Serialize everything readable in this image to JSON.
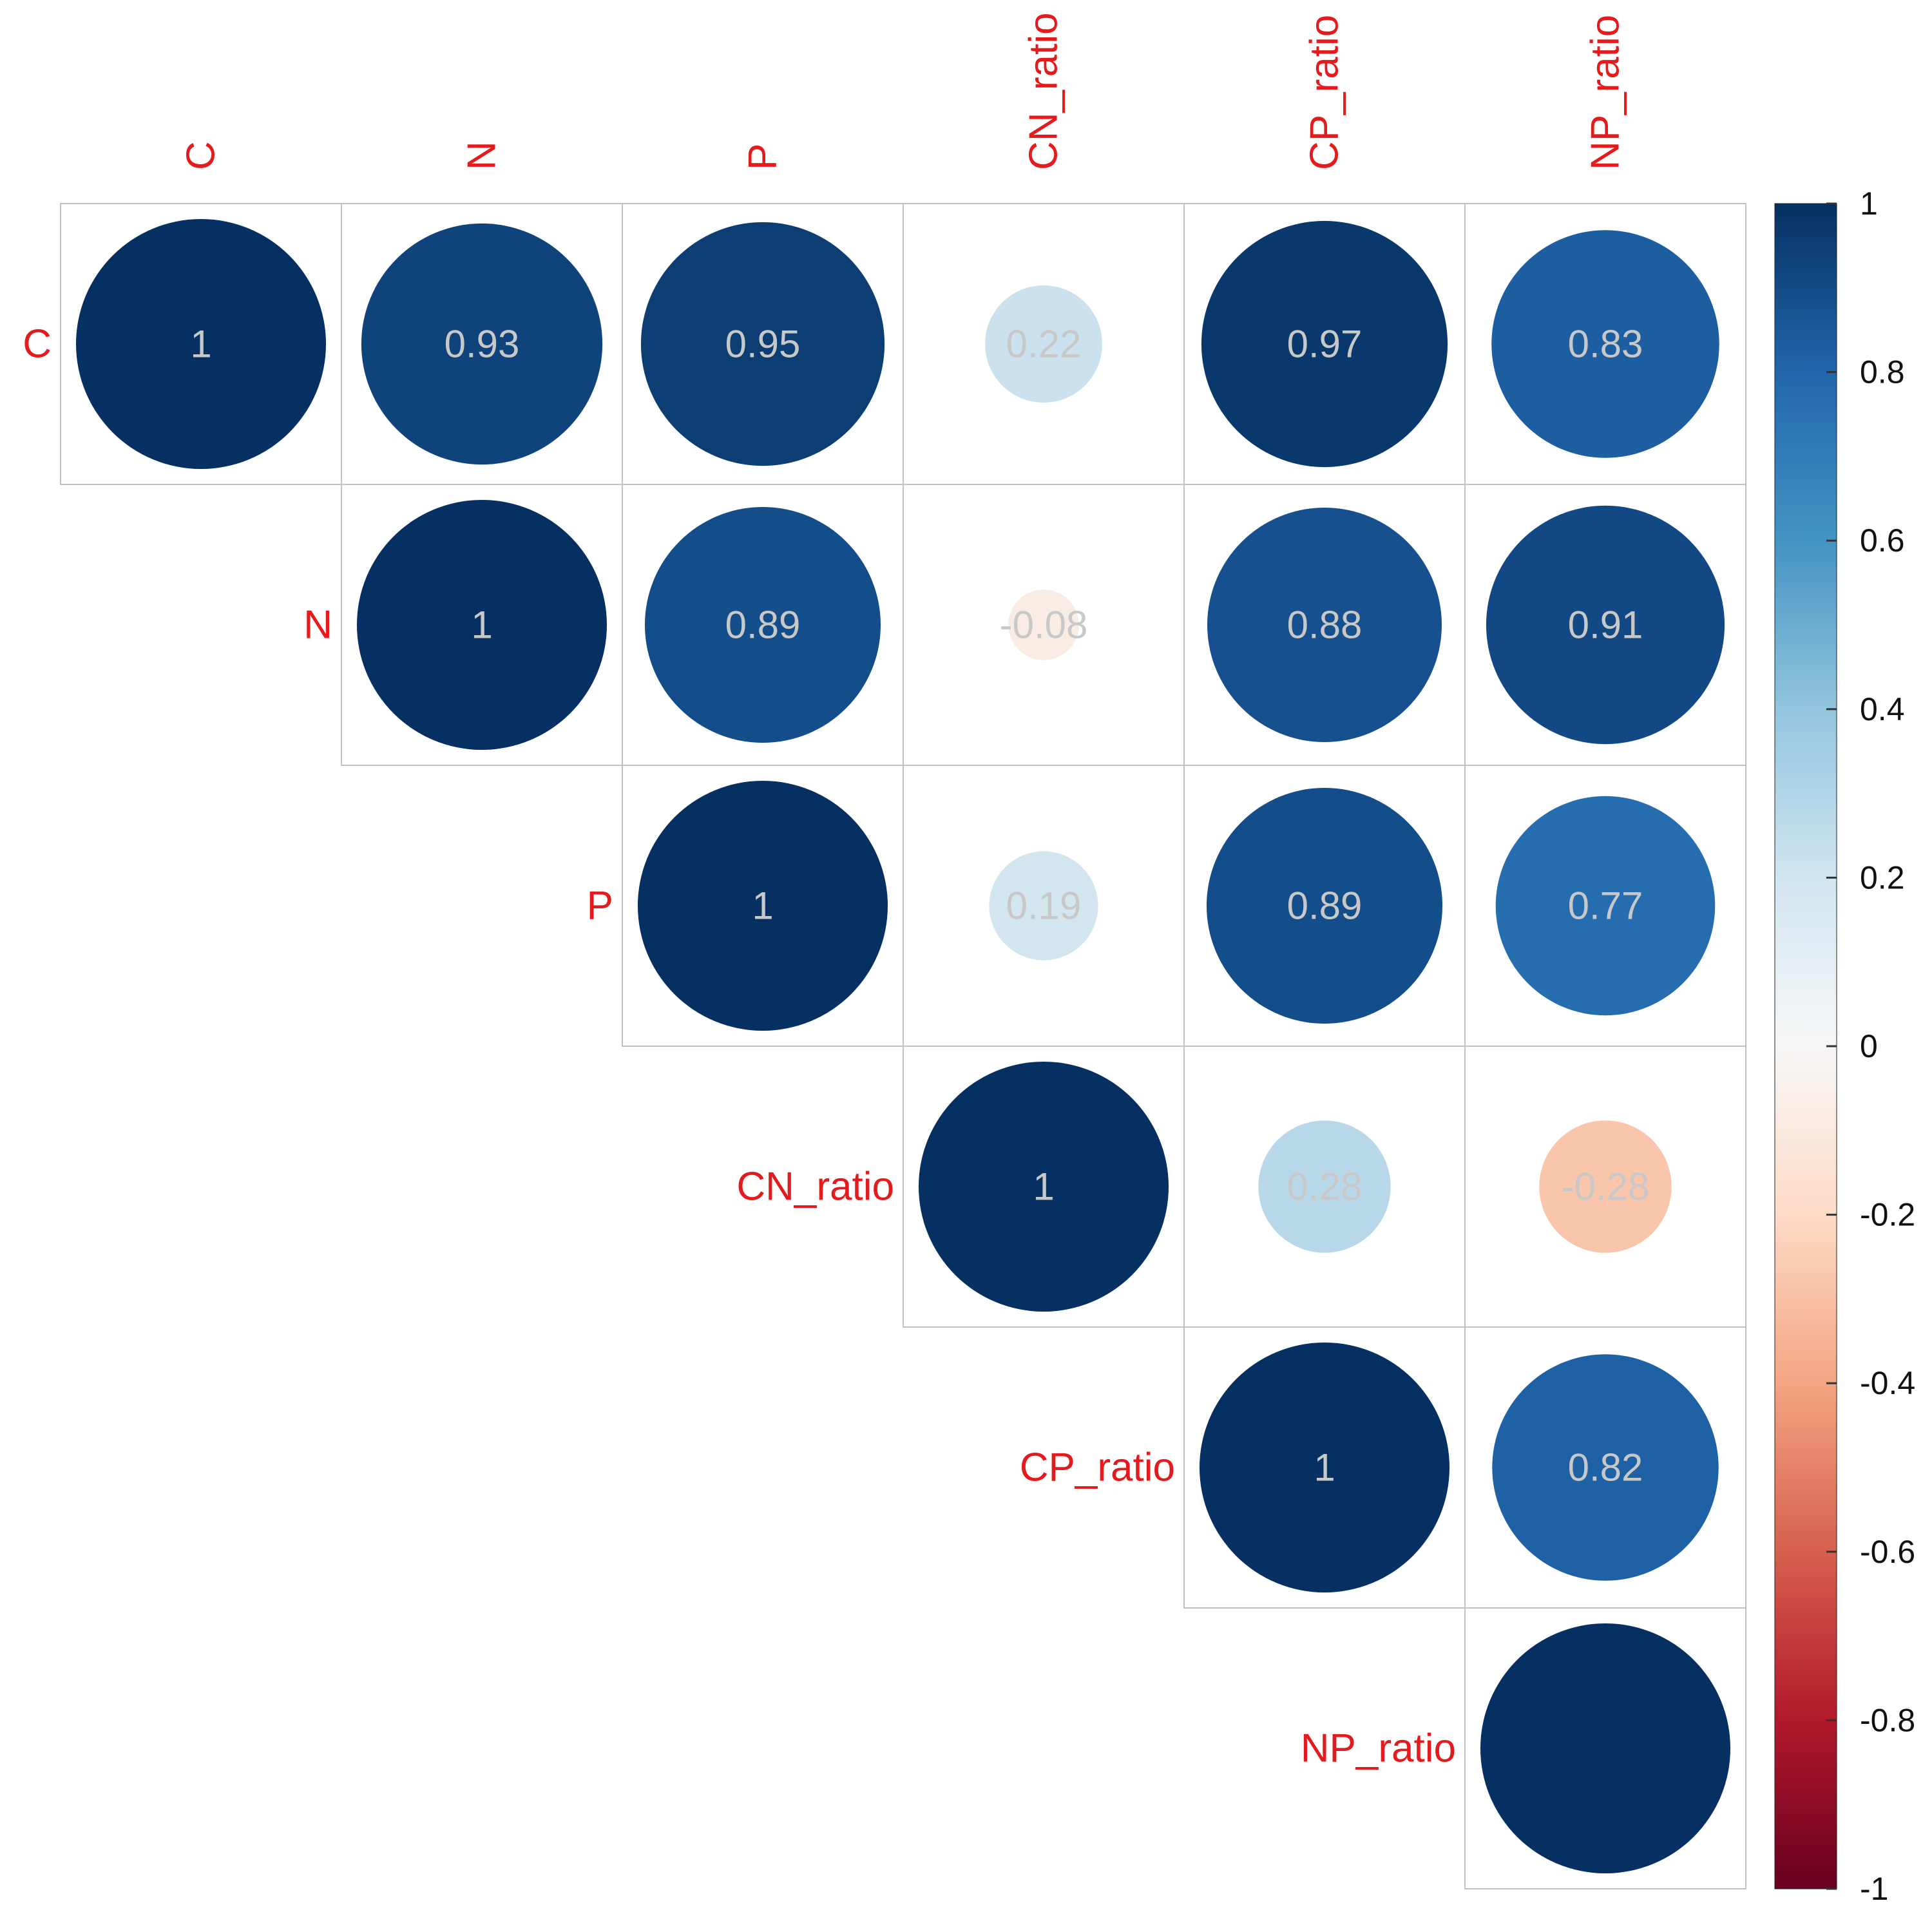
{
  "chart_data": {
    "type": "heatmap",
    "style": "correlation-matrix-upper-circles",
    "variables": [
      "C",
      "N",
      "P",
      "CN_ratio",
      "CP_ratio",
      "NP_ratio"
    ],
    "matrix": [
      [
        1,
        0.93,
        0.95,
        0.22,
        0.97,
        0.83
      ],
      [
        0.93,
        1,
        0.89,
        -0.08,
        0.88,
        0.91
      ],
      [
        0.95,
        0.89,
        1,
        0.19,
        0.89,
        0.77
      ],
      [
        0.22,
        -0.08,
        0.19,
        1,
        0.28,
        -0.28
      ],
      [
        0.97,
        0.88,
        0.89,
        0.28,
        1,
        0.82
      ],
      [
        0.83,
        0.91,
        0.77,
        -0.28,
        0.82,
        1
      ]
    ],
    "cells": [
      {
        "row": 0,
        "col": 0,
        "value": 1,
        "label": "1"
      },
      {
        "row": 0,
        "col": 1,
        "value": 0.93,
        "label": "0.93"
      },
      {
        "row": 0,
        "col": 2,
        "value": 0.95,
        "label": "0.95"
      },
      {
        "row": 0,
        "col": 3,
        "value": 0.22,
        "label": "0.22"
      },
      {
        "row": 0,
        "col": 4,
        "value": 0.97,
        "label": "0.97"
      },
      {
        "row": 0,
        "col": 5,
        "value": 0.83,
        "label": "0.83"
      },
      {
        "row": 1,
        "col": 1,
        "value": 1,
        "label": "1"
      },
      {
        "row": 1,
        "col": 2,
        "value": 0.89,
        "label": "0.89"
      },
      {
        "row": 1,
        "col": 3,
        "value": -0.08,
        "label": "-0.08"
      },
      {
        "row": 1,
        "col": 4,
        "value": 0.88,
        "label": "0.88"
      },
      {
        "row": 1,
        "col": 5,
        "value": 0.91,
        "label": "0.91"
      },
      {
        "row": 2,
        "col": 2,
        "value": 1,
        "label": "1"
      },
      {
        "row": 2,
        "col": 3,
        "value": 0.19,
        "label": "0.19"
      },
      {
        "row": 2,
        "col": 4,
        "value": 0.89,
        "label": "0.89"
      },
      {
        "row": 2,
        "col": 5,
        "value": 0.77,
        "label": "0.77"
      },
      {
        "row": 3,
        "col": 3,
        "value": 1,
        "label": "1"
      },
      {
        "row": 3,
        "col": 4,
        "value": 0.28,
        "label": "0.28"
      },
      {
        "row": 3,
        "col": 5,
        "value": -0.28,
        "label": "-0.28"
      },
      {
        "row": 4,
        "col": 4,
        "value": 1,
        "label": "1"
      },
      {
        "row": 4,
        "col": 5,
        "value": 0.82,
        "label": "0.82"
      },
      {
        "row": 5,
        "col": 5,
        "value": 1,
        "label": ""
      }
    ],
    "value_range": [
      -1,
      1
    ],
    "colorbar": {
      "ticks": [
        1,
        0.8,
        0.6,
        0.4,
        0.2,
        0,
        -0.2,
        -0.4,
        -0.6,
        -0.8,
        -1
      ],
      "tick_labels": [
        "1",
        "0.8",
        "0.6",
        "0.4",
        "0.2",
        "0",
        "-0.2",
        "-0.4",
        "-0.6",
        "-0.8",
        "-1"
      ],
      "placement": "right"
    },
    "colors": {
      "label": "#e41a1c",
      "coef_text": "#c8c8c8",
      "grid": "#c0c0c0",
      "scale_stops": [
        {
          "v": -1,
          "c": "#67001f"
        },
        {
          "v": -0.8,
          "c": "#b2182b"
        },
        {
          "v": -0.6,
          "c": "#d6604d"
        },
        {
          "v": -0.4,
          "c": "#f4a582"
        },
        {
          "v": -0.2,
          "c": "#fddbc7"
        },
        {
          "v": 0,
          "c": "#f7f7f7"
        },
        {
          "v": 0.2,
          "c": "#d1e5f0"
        },
        {
          "v": 0.4,
          "c": "#92c5de"
        },
        {
          "v": 0.6,
          "c": "#4393c3"
        },
        {
          "v": 0.8,
          "c": "#2166ac"
        },
        {
          "v": 1,
          "c": "#053061"
        }
      ]
    }
  }
}
